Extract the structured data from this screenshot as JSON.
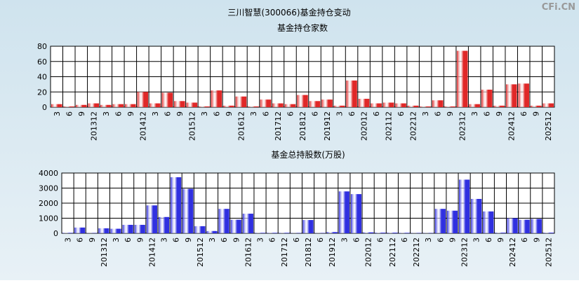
{
  "title": "三川智慧(300066)基金持仓变动",
  "watermark": "CFi.CN",
  "chart_data": [
    {
      "type": "bar",
      "title": "基金持仓家数",
      "color": "#e02828",
      "categories": [
        "3",
        "6",
        "9",
        "201312",
        "3",
        "6",
        "9",
        "201412",
        "3",
        "6",
        "9",
        "201512",
        "3",
        "6",
        "9",
        "201612",
        "3",
        "6",
        "201712",
        "6",
        "201812",
        "6",
        "201912",
        "3",
        "6",
        "202012",
        "6",
        "202112",
        "6",
        "202212",
        "3",
        "6",
        "9",
        "202312",
        "3",
        "6",
        "9",
        "202412",
        "6",
        "9",
        "202512"
      ],
      "values": [
        4,
        1,
        3,
        5,
        3,
        4,
        4,
        20,
        5,
        19,
        8,
        6,
        1,
        22,
        2,
        14,
        1,
        10,
        5,
        4,
        16,
        8,
        10,
        2,
        35,
        11,
        5,
        6,
        5,
        2,
        1,
        9,
        1,
        74,
        4,
        23,
        2,
        30,
        31,
        2,
        5
      ],
      "ylim": [
        0,
        80
      ],
      "yticks": [
        0,
        20,
        40,
        60,
        80
      ],
      "grid": true
    },
    {
      "type": "bar",
      "title": "基金总持股数(万股)",
      "color": "#3030e0",
      "categories": [
        "3",
        "6",
        "9",
        "201312",
        "3",
        "6",
        "9",
        "201412",
        "3",
        "6",
        "9",
        "201512",
        "3",
        "6",
        "9",
        "201612",
        "3",
        "6",
        "201712",
        "6",
        "201812",
        "6",
        "201912",
        "3",
        "6",
        "202012",
        "6",
        "202112",
        "6",
        "202212",
        "3",
        "6",
        "9",
        "202312",
        "3",
        "6",
        "9",
        "202412",
        "6",
        "9",
        "202512"
      ],
      "values": [
        30,
        380,
        20,
        330,
        300,
        560,
        560,
        1850,
        1080,
        3720,
        2950,
        470,
        150,
        1620,
        900,
        1300,
        30,
        30,
        30,
        20,
        880,
        20,
        80,
        2780,
        2600,
        60,
        40,
        40,
        30,
        20,
        20,
        1620,
        1500,
        3560,
        2280,
        1450,
        40,
        1000,
        900,
        950,
        40
      ],
      "ylim": [
        0,
        4000
      ],
      "yticks": [
        0,
        1000,
        2000,
        3000,
        4000
      ],
      "grid": true
    }
  ]
}
